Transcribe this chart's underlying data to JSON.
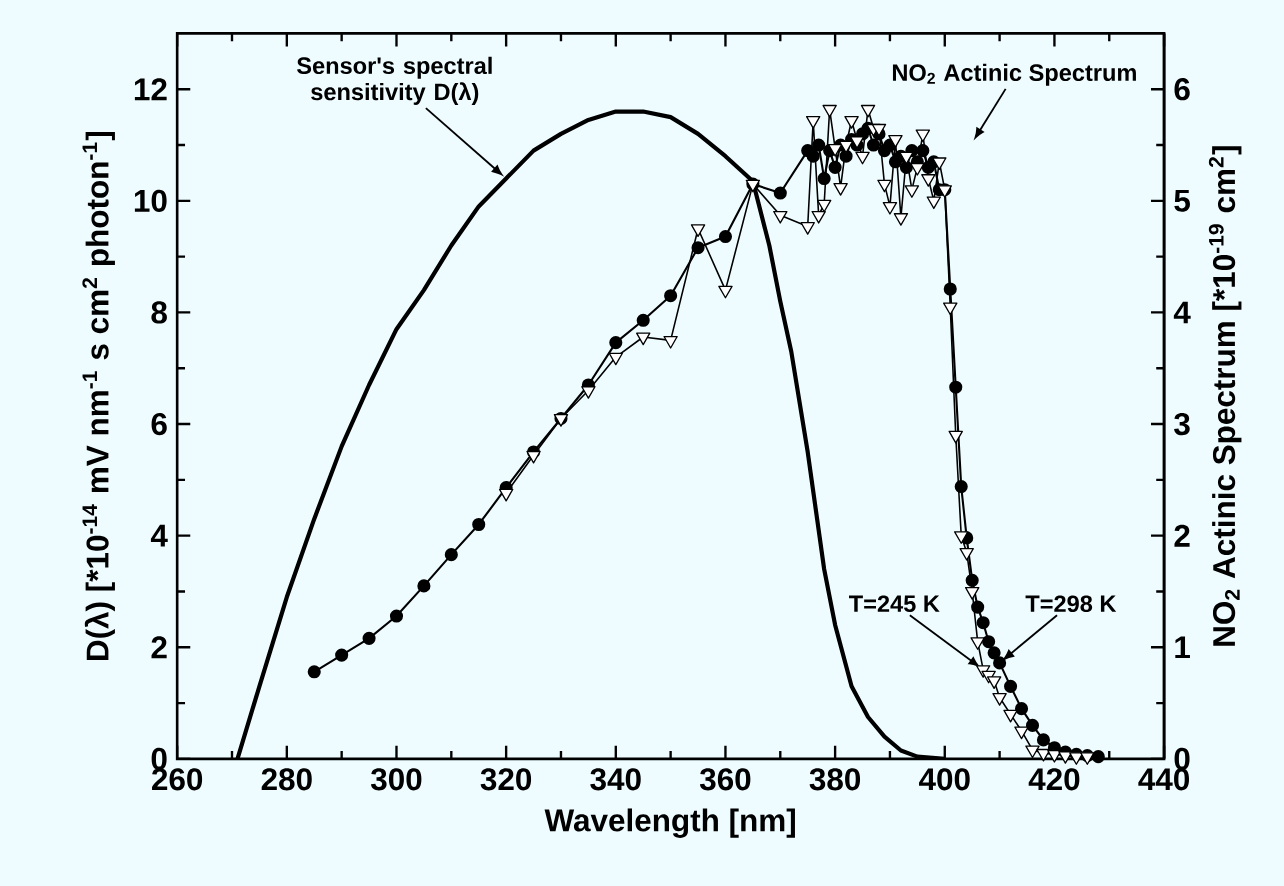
{
  "chart_data": {
    "type": "line",
    "xlabel": "Wavelength [nm]",
    "ylabel": "D(λ) [*10$^{-14}$ mV nm$^{-1}$ s cm$^{2}$ photon$^{-1}$]",
    "y2label": "NO$_{2}$ Actinic Spectrum [*10$^{-19}$ cm$^{2}$]",
    "xlim": [
      260,
      440
    ],
    "xticks": [
      260,
      280,
      300,
      320,
      340,
      360,
      380,
      400,
      420,
      440
    ],
    "ylim": [
      0,
      13
    ],
    "yticks": [
      0,
      2,
      4,
      6,
      8,
      10,
      12
    ],
    "y2lim": [
      0,
      6.5
    ],
    "y2ticks": [
      0,
      1,
      2,
      3,
      4,
      5,
      6
    ],
    "annotations": [
      "NO$_{2}$ Actinic Spectrum"
    ],
    "series": [
      {
        "name": "Sensor's spectral sensitivity D(λ)",
        "color": "#000000",
        "marker": "none",
        "x": [
          271,
          275,
          280,
          285,
          290,
          295,
          300,
          305,
          310,
          315,
          320,
          325,
          330,
          335,
          340,
          345,
          350,
          355,
          360,
          365,
          368,
          370,
          372,
          375,
          378,
          380,
          383,
          386,
          389,
          392,
          395,
          400
        ],
        "values": [
          0,
          1.3,
          2.9,
          4.3,
          5.6,
          6.7,
          7.7,
          8.4,
          9.2,
          9.9,
          10.4,
          10.9,
          11.2,
          11.45,
          11.6,
          11.6,
          11.5,
          11.2,
          10.8,
          10.35,
          9.2,
          8.2,
          7.3,
          5.5,
          3.4,
          2.4,
          1.3,
          0.75,
          0.4,
          0.15,
          0.04,
          0
        ]
      },
      {
        "name": "T=298 K",
        "color": "#000000",
        "marker": "circle",
        "axis": "y2",
        "x": [
          285,
          290,
          295,
          300,
          305,
          310,
          315,
          320,
          325,
          330,
          335,
          340,
          345,
          350,
          355,
          360,
          365,
          370,
          375,
          376,
          377,
          378,
          379,
          380,
          381,
          382,
          383,
          384,
          385,
          386,
          387,
          388,
          389,
          390,
          391,
          392,
          393,
          394,
          395,
          396,
          397,
          398,
          399,
          400,
          401,
          402,
          403,
          404,
          405,
          406,
          407,
          408,
          409,
          410,
          412,
          414,
          416,
          418,
          420,
          422,
          424,
          426,
          428
        ],
        "values": [
          0.78,
          0.93,
          1.08,
          1.28,
          1.55,
          1.83,
          2.1,
          2.43,
          2.75,
          3.05,
          3.35,
          3.73,
          3.93,
          4.15,
          4.58,
          4.68,
          5.15,
          5.07,
          5.45,
          5.4,
          5.5,
          5.2,
          5.45,
          5.3,
          5.5,
          5.4,
          5.55,
          5.5,
          5.6,
          5.65,
          5.5,
          5.6,
          5.45,
          5.5,
          5.35,
          5.4,
          5.3,
          5.45,
          5.35,
          5.45,
          5.3,
          5.35,
          5.1,
          5.1,
          4.21,
          3.33,
          2.44,
          1.98,
          1.6,
          1.36,
          1.22,
          1.05,
          0.95,
          0.86,
          0.65,
          0.45,
          0.3,
          0.17,
          0.1,
          0.06,
          0.04,
          0.03,
          0.02
        ]
      },
      {
        "name": "T=245 K",
        "color": "#000000",
        "marker": "triangle",
        "axis": "y2",
        "x": [
          320,
          325,
          330,
          335,
          340,
          345,
          350,
          355,
          360,
          365,
          370,
          375,
          376,
          377,
          378,
          379,
          380,
          381,
          382,
          383,
          384,
          385,
          386,
          387,
          388,
          389,
          390,
          391,
          392,
          393,
          394,
          395,
          396,
          397,
          398,
          399,
          400,
          401,
          402,
          403,
          404,
          405,
          406,
          407,
          408,
          409,
          410,
          412,
          414,
          416,
          418,
          420,
          422,
          424,
          426
        ],
        "values": [
          2.38,
          2.72,
          3.05,
          3.3,
          3.6,
          3.78,
          3.75,
          4.75,
          4.2,
          5.15,
          4.87,
          4.77,
          5.72,
          4.87,
          4.97,
          5.82,
          5.47,
          5.12,
          5.5,
          5.72,
          5.54,
          5.4,
          5.82,
          5.65,
          5.65,
          5.15,
          4.95,
          5.55,
          4.85,
          5.4,
          5.1,
          5.3,
          5.6,
          5.2,
          5.0,
          5.35,
          5.1,
          4.05,
          2.9,
          2.0,
          1.85,
          1.5,
          1.05,
          0.8,
          0.75,
          0.7,
          0.55,
          0.4,
          0.25,
          0.08,
          0.05,
          0.04,
          0.03,
          0.02,
          0.02
        ]
      }
    ]
  }
}
